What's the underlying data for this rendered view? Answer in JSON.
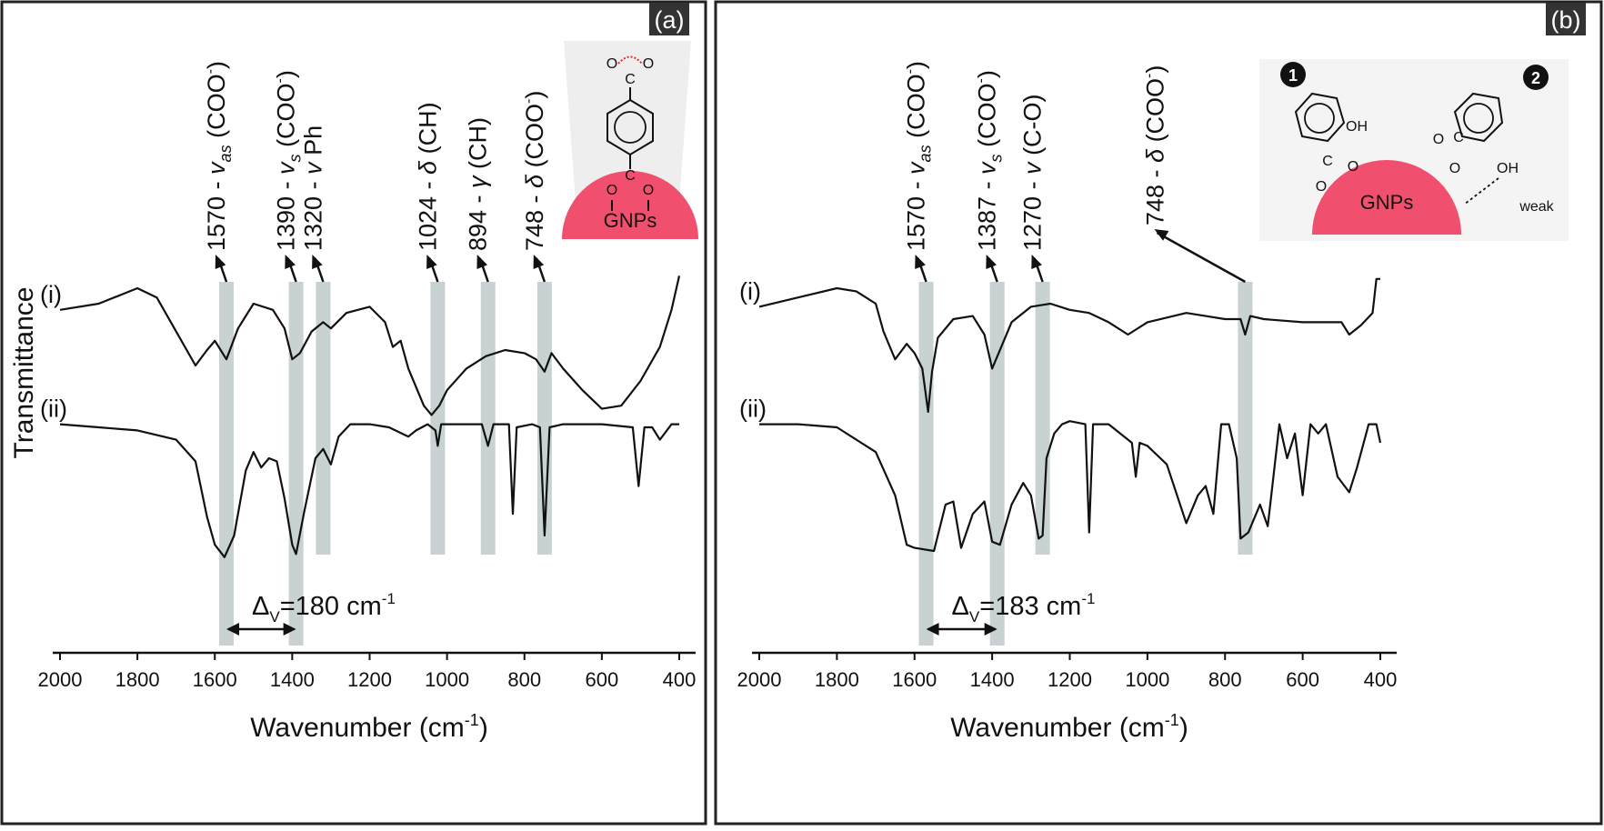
{
  "colors": {
    "band": "#c9d2d2",
    "curve": "#111111",
    "gnp": "#f0506e",
    "halo": "#eeeeee"
  },
  "chart_data": [
    {
      "panel": "(a)",
      "type": "line",
      "xlabel": "Wavenumber (cm-1)",
      "ylabel": "Transmittance",
      "xlim": [
        2000,
        400
      ],
      "x_reversed": true,
      "xticks": [
        2000,
        1800,
        1600,
        1400,
        1200,
        1000,
        800,
        600,
        400
      ],
      "y_units": "a.u. (offset traces)",
      "grid": false,
      "series": [
        {
          "name": "(i)",
          "points": [
            [
              2000,
              88
            ],
            [
              1900,
              90
            ],
            [
              1800,
              95
            ],
            [
              1750,
              92
            ],
            [
              1700,
              81
            ],
            [
              1650,
              70
            ],
            [
              1620,
              75
            ],
            [
              1600,
              78
            ],
            [
              1570,
              72
            ],
            [
              1540,
              82
            ],
            [
              1500,
              90
            ],
            [
              1450,
              88
            ],
            [
              1420,
              82
            ],
            [
              1400,
              72
            ],
            [
              1380,
              74
            ],
            [
              1350,
              81
            ],
            [
              1320,
              84
            ],
            [
              1300,
              82
            ],
            [
              1260,
              87
            ],
            [
              1200,
              89
            ],
            [
              1160,
              84
            ],
            [
              1140,
              76
            ],
            [
              1120,
              78
            ],
            [
              1100,
              69
            ],
            [
              1060,
              57
            ],
            [
              1040,
              54
            ],
            [
              1020,
              57
            ],
            [
              1000,
              62
            ],
            [
              950,
              69
            ],
            [
              900,
              73
            ],
            [
              850,
              75
            ],
            [
              800,
              74
            ],
            [
              770,
              72
            ],
            [
              748,
              68
            ],
            [
              730,
              74
            ],
            [
              700,
              69
            ],
            [
              650,
              62
            ],
            [
              600,
              56
            ],
            [
              550,
              57
            ],
            [
              500,
              65
            ],
            [
              450,
              76
            ],
            [
              420,
              88
            ],
            [
              400,
              99
            ]
          ]
        },
        {
          "name": "(ii)",
          "points": [
            [
              2000,
              51
            ],
            [
              1900,
              50
            ],
            [
              1800,
              49
            ],
            [
              1700,
              46
            ],
            [
              1650,
              39
            ],
            [
              1620,
              21
            ],
            [
              1600,
              12
            ],
            [
              1575,
              8
            ],
            [
              1550,
              15
            ],
            [
              1520,
              36
            ],
            [
              1500,
              42
            ],
            [
              1480,
              37
            ],
            [
              1460,
              40
            ],
            [
              1440,
              39
            ],
            [
              1420,
              27
            ],
            [
              1400,
              12
            ],
            [
              1390,
              9
            ],
            [
              1370,
              22
            ],
            [
              1340,
              40
            ],
            [
              1320,
              43
            ],
            [
              1300,
              38
            ],
            [
              1280,
              47
            ],
            [
              1250,
              51
            ],
            [
              1200,
              51
            ],
            [
              1150,
              50
            ],
            [
              1100,
              47
            ],
            [
              1080,
              49
            ],
            [
              1050,
              51
            ],
            [
              1030,
              49
            ],
            [
              1024,
              44
            ],
            [
              1015,
              51
            ],
            [
              950,
              51
            ],
            [
              910,
              51
            ],
            [
              894,
              44
            ],
            [
              880,
              51
            ],
            [
              840,
              51
            ],
            [
              830,
              22
            ],
            [
              820,
              50
            ],
            [
              780,
              51
            ],
            [
              760,
              50
            ],
            [
              748,
              15
            ],
            [
              735,
              50
            ],
            [
              700,
              51
            ],
            [
              600,
              51
            ],
            [
              520,
              50
            ],
            [
              505,
              31
            ],
            [
              490,
              50
            ],
            [
              470,
              50
            ],
            [
              450,
              46
            ],
            [
              420,
              51
            ],
            [
              400,
              51
            ]
          ]
        }
      ],
      "bands": [
        {
          "wavenumber": 1570,
          "label": {
            "num": "1570",
            "sym": "v",
            "sub": "as",
            "group": "(COO",
            "sup": "-",
            "close": ")"
          }
        },
        {
          "wavenumber": 1390,
          "label": {
            "num": "1390",
            "sym": "v",
            "sub": "s",
            "group": "(COO",
            "sup": "-",
            "close": ")"
          }
        },
        {
          "wavenumber": 1320,
          "label": {
            "num": "1320",
            "sym": "v",
            "sub": "",
            "group": "Ph",
            "sup": "",
            "close": ""
          }
        },
        {
          "wavenumber": 1024,
          "label": {
            "num": "1024",
            "sym": "δ",
            "sub": "",
            "group": "(CH)",
            "sup": "",
            "close": ""
          }
        },
        {
          "wavenumber": 894,
          "label": {
            "num": "894",
            "sym": "γ",
            "sub": "",
            "group": "(CH)",
            "sup": "",
            "close": ""
          }
        },
        {
          "wavenumber": 748,
          "label": {
            "num": "748",
            "sym": "δ",
            "sub": "",
            "group": "(COO",
            "sup": "-",
            "close": ")"
          }
        }
      ],
      "delta": {
        "text": "Δ",
        "sub": "V",
        "value": "=180 cm",
        "sup": "-1"
      },
      "inset": {
        "label": "GNPs"
      }
    },
    {
      "panel": "(b)",
      "type": "line",
      "xlabel": "Wavenumber (cm-1)",
      "xlim": [
        2000,
        400
      ],
      "x_reversed": true,
      "xticks": [
        2000,
        1800,
        1600,
        1400,
        1200,
        1000,
        800,
        600,
        400
      ],
      "y_units": "a.u. (offset traces)",
      "grid": false,
      "series": [
        {
          "name": "(i)",
          "points": [
            [
              2000,
              89
            ],
            [
              1900,
              92
            ],
            [
              1800,
              95
            ],
            [
              1750,
              94
            ],
            [
              1700,
              90
            ],
            [
              1680,
              81
            ],
            [
              1650,
              72
            ],
            [
              1620,
              77
            ],
            [
              1600,
              74
            ],
            [
              1580,
              69
            ],
            [
              1565,
              55
            ],
            [
              1555,
              68
            ],
            [
              1540,
              79
            ],
            [
              1500,
              85
            ],
            [
              1450,
              86
            ],
            [
              1420,
              80
            ],
            [
              1400,
              69
            ],
            [
              1380,
              75
            ],
            [
              1350,
              84
            ],
            [
              1300,
              89
            ],
            [
              1250,
              90
            ],
            [
              1200,
              88
            ],
            [
              1150,
              87
            ],
            [
              1100,
              84
            ],
            [
              1050,
              80
            ],
            [
              1000,
              84
            ],
            [
              900,
              87
            ],
            [
              850,
              86
            ],
            [
              800,
              85
            ],
            [
              760,
              85
            ],
            [
              748,
              80
            ],
            [
              735,
              86
            ],
            [
              700,
              85
            ],
            [
              600,
              84
            ],
            [
              500,
              84
            ],
            [
              480,
              80
            ],
            [
              450,
              83
            ],
            [
              420,
              87
            ],
            [
              410,
              98
            ],
            [
              400,
              98
            ]
          ]
        },
        {
          "name": "(ii)",
          "points": [
            [
              2000,
              51
            ],
            [
              1900,
              51
            ],
            [
              1800,
              50
            ],
            [
              1700,
              42
            ],
            [
              1650,
              28
            ],
            [
              1620,
              12
            ],
            [
              1600,
              11
            ],
            [
              1550,
              10
            ],
            [
              1520,
              25
            ],
            [
              1500,
              26
            ],
            [
              1480,
              11
            ],
            [
              1450,
              22
            ],
            [
              1420,
              26
            ],
            [
              1400,
              13
            ],
            [
              1380,
              12
            ],
            [
              1350,
              25
            ],
            [
              1320,
              32
            ],
            [
              1300,
              28
            ],
            [
              1280,
              14
            ],
            [
              1270,
              15
            ],
            [
              1260,
              40
            ],
            [
              1240,
              48
            ],
            [
              1220,
              51
            ],
            [
              1200,
              52
            ],
            [
              1160,
              51
            ],
            [
              1150,
              16
            ],
            [
              1140,
              51
            ],
            [
              1100,
              51
            ],
            [
              1040,
              45
            ],
            [
              1030,
              34
            ],
            [
              1020,
              45
            ],
            [
              1000,
              44
            ],
            [
              950,
              38
            ],
            [
              900,
              19
            ],
            [
              870,
              28
            ],
            [
              850,
              31
            ],
            [
              830,
              22
            ],
            [
              810,
              51
            ],
            [
              790,
              51
            ],
            [
              770,
              40
            ],
            [
              760,
              14
            ],
            [
              740,
              16
            ],
            [
              710,
              25
            ],
            [
              690,
              18
            ],
            [
              680,
              29
            ],
            [
              660,
              51
            ],
            [
              640,
              40
            ],
            [
              620,
              48
            ],
            [
              600,
              28
            ],
            [
              580,
              51
            ],
            [
              560,
              48
            ],
            [
              540,
              51
            ],
            [
              510,
              34
            ],
            [
              480,
              29
            ],
            [
              460,
              37
            ],
            [
              430,
              51
            ],
            [
              410,
              51
            ],
            [
              400,
              45
            ]
          ]
        }
      ],
      "bands": [
        {
          "wavenumber": 1570,
          "label": {
            "num": "1570",
            "sym": "v",
            "sub": "as",
            "group": "(COO",
            "sup": "-",
            "close": ")"
          }
        },
        {
          "wavenumber": 1387,
          "label": {
            "num": "1387",
            "sym": "v",
            "sub": "s",
            "group": "(COO",
            "sup": "-",
            "close": ")"
          }
        },
        {
          "wavenumber": 1270,
          "label": {
            "num": "1270",
            "sym": "v",
            "sub": "",
            "group": "(C-O)",
            "sup": "",
            "close": ""
          }
        },
        {
          "wavenumber": 748,
          "label": {
            "num": "748",
            "sym": "δ",
            "sub": "",
            "group": "(COO",
            "sup": "-",
            "close": ")"
          }
        }
      ],
      "delta": {
        "text": "Δ",
        "sub": "V",
        "value": "=183 cm",
        "sup": "-1"
      },
      "inset": {
        "label": "GNPs",
        "badge1": "1",
        "badge2": "2",
        "oh": "OH",
        "weak": "weak"
      }
    }
  ]
}
